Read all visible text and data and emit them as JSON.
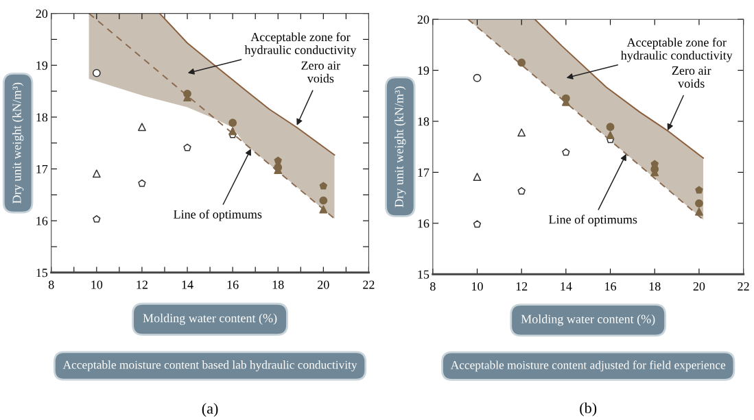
{
  "chart_data": [
    {
      "type": "scatter",
      "xlabel": "Molding water content (%)",
      "ylabel": "Dry unit weight (kN/m³)",
      "xlim": [
        8,
        22
      ],
      "ylim": [
        15,
        20
      ],
      "xticks": [
        8,
        {
          "value": 9,
          "label": null
        },
        10,
        {
          "value": 11,
          "label": null
        },
        12,
        {
          "value": 13,
          "label": null
        },
        14,
        {
          "value": 15,
          "label": null
        },
        16,
        {
          "value": 17,
          "label": null
        },
        18,
        {
          "value": 19,
          "label": null
        },
        20,
        {
          "value": 21,
          "label": null
        },
        22
      ],
      "yticks": [
        15,
        {
          "value": 15.5,
          "label": null
        },
        16,
        {
          "value": 16.5,
          "label": null
        },
        17,
        {
          "value": 17.5,
          "label": null
        },
        18,
        {
          "value": 18.5,
          "label": null
        },
        19,
        {
          "value": 19.5,
          "label": null
        },
        20
      ],
      "grid": false,
      "series": [
        {
          "type": "line",
          "color": "#8b5e3c",
          "line_style": "solid",
          "x": [
            9.66,
            12.08,
            12.78,
            14.0,
            15.2,
            16.0,
            16.5,
            17.62,
            18.83,
            20.49
          ],
          "values": [
            null,
            null,
            20,
            19.43,
            19.0,
            18.72,
            18.54,
            18.15,
            17.8,
            17.27
          ],
          "upper": [
            20,
            20,
            20,
            19.43,
            19.0,
            18.72,
            18.54,
            18.15,
            17.8,
            17.27
          ],
          "lower": [
            18.74,
            18.41,
            18.33,
            18.19,
            17.97,
            17.8,
            17.5,
            17.09,
            16.65,
            16.04
          ]
        },
        {
          "type": "line",
          "color": "#8b6a50",
          "line_style": "dashed",
          "x": [
            9.66,
            20.44
          ],
          "values": [
            20,
            16.06
          ]
        },
        {
          "marker": "circle",
          "color": "#ffffff",
          "x": [
            10
          ],
          "values": [
            18.85
          ]
        },
        {
          "marker": "triangle",
          "color": "#ffffff",
          "x": [
            10,
            12
          ],
          "values": [
            16.91,
            17.81
          ]
        },
        {
          "color": "#ffffff",
          "x": [
            10,
            12,
            14,
            16
          ],
          "values": [
            16.03,
            16.72,
            17.41,
            17.66
          ]
        },
        {
          "marker": "triangle",
          "color": "#7d6645",
          "x": [
            14,
            16,
            18,
            20
          ],
          "values": [
            18.38,
            17.73,
            16.98,
            16.22
          ]
        },
        {
          "marker": "circle",
          "color": "#7d6645",
          "x": [
            14,
            16,
            18,
            20
          ],
          "values": [
            18.45,
            17.89,
            17.03,
            16.39
          ]
        },
        {
          "color": "#7d6645",
          "x": [
            18,
            20
          ],
          "values": [
            17.16,
            16.67
          ]
        }
      ],
      "annotations": [
        {
          "text": "Zero air\nvoids",
          "x": 18.83,
          "y": 17.84
        },
        {
          "text": "Line of optimums",
          "x": 16.81,
          "y": 17.39
        },
        "Acceptable zone for\nhydraulic conductivity",
        "Acceptable moisture content based lab hydraulic conductivity",
        "(a)"
      ]
    },
    {
      "type": "scatter",
      "xlabel": "Molding water content (%)",
      "ylabel": "Dry unit weight (kN/m³)",
      "xlim": [
        8,
        22
      ],
      "ylim": [
        15,
        20
      ],
      "xticks": [
        8,
        10,
        12,
        14,
        16,
        18,
        20,
        22
      ],
      "yticks": [
        15,
        16,
        17,
        18,
        19,
        20
      ],
      "grid": false,
      "series": [
        {
          "type": "line",
          "color": "#8b5e3c",
          "line_style": "solid",
          "x": [
            9.59,
            12.6,
            13.81,
            15.82,
            17.33,
            18.63,
            20.19
          ],
          "values": [
            null,
            20,
            19.48,
            18.67,
            18.18,
            17.8,
            17.28
          ],
          "upper": [
            20,
            20,
            19.48,
            18.67,
            18.18,
            17.8,
            17.28
          ],
          "lower": [
            20,
            18.88,
            18.44,
            17.69,
            17.13,
            16.65,
            16.07
          ]
        },
        {
          "type": "line",
          "color": "#8b6a50",
          "line_style": "dashed",
          "x": [
            9.59,
            20.19
          ],
          "values": [
            20,
            16.07
          ]
        },
        {
          "marker": "circle",
          "color": "#ffffff",
          "x": [
            10
          ],
          "values": [
            18.85
          ]
        },
        {
          "marker": "triangle",
          "color": "#ffffff",
          "x": [
            10,
            12
          ],
          "values": [
            16.91,
            17.78
          ]
        },
        {
          "color": "#ffffff",
          "x": [
            10,
            12,
            14,
            16
          ],
          "values": [
            15.98,
            16.63,
            17.39,
            17.64
          ]
        },
        {
          "marker": "triangle",
          "color": "#7d6645",
          "x": [
            14,
            16,
            18,
            20
          ],
          "values": [
            18.38,
            17.73,
            17.0,
            16.23
          ]
        },
        {
          "marker": "circle",
          "color": "#7d6645",
          "x": [
            12,
            14,
            16,
            18,
            20
          ],
          "values": [
            19.15,
            18.45,
            17.89,
            17.06,
            16.39
          ]
        },
        {
          "color": "#7d6645",
          "x": [
            18,
            20
          ],
          "values": [
            17.16,
            16.65
          ]
        }
      ],
      "annotations": [
        {
          "text": "Zero air\nvoids",
          "x": 18.58,
          "y": 17.82
        },
        {
          "text": "Line of optimums",
          "x": 16.72,
          "y": 17.36
        },
        "Acceptable zone for\nhydraulic conductivity",
        "Acceptable moisture content adjusted for field experience",
        "(b)"
      ]
    }
  ]
}
